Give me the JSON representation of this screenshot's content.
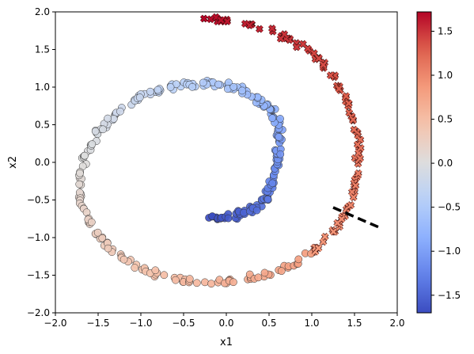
{
  "chart_data": {
    "type": "scatter",
    "title": "",
    "xlabel": "x1",
    "ylabel": "x2",
    "xlim": [
      -2.0,
      2.0
    ],
    "ylim": [
      -2.0,
      2.0
    ],
    "x_ticks": [
      "−2.0",
      "−1.5",
      "−1.0",
      "−0.5",
      "0.0",
      "0.5",
      "1.0",
      "1.5",
      "2.0"
    ],
    "y_ticks": [
      "−2.0",
      "−1.5",
      "−1.0",
      "−0.5",
      "0.0",
      "0.5",
      "1.0",
      "1.5",
      "2.0"
    ],
    "grid": false,
    "colormap": "coolwarm",
    "colorbar": {
      "range": [
        -1.7,
        1.72
      ],
      "ticks": [
        "−1.5",
        "−1.0",
        "−0.5",
        "0.0",
        "0.5",
        "1.0",
        "1.5"
      ],
      "tick_values": [
        -1.5,
        -1.0,
        -0.5,
        0.0,
        0.5,
        1.0,
        1.5
      ]
    },
    "spiral": {
      "description_markers": "circles for value below about 0.85, crosses above",
      "t_range": [
        -1.7,
        1.72
      ],
      "points": [
        [
          -0.2,
          -0.74,
          -1.7
        ],
        [
          -0.1,
          -0.75,
          -1.65
        ],
        [
          0.02,
          -0.74,
          -1.6
        ],
        [
          0.12,
          -0.7,
          -1.55
        ],
        [
          0.22,
          -0.66,
          -1.5
        ],
        [
          0.32,
          -0.62,
          -1.45
        ],
        [
          0.4,
          -0.56,
          -1.4
        ],
        [
          0.46,
          -0.48,
          -1.35
        ],
        [
          0.5,
          -0.38,
          -1.3
        ],
        [
          0.53,
          -0.28,
          -1.25
        ],
        [
          0.56,
          -0.16,
          -1.2
        ],
        [
          0.58,
          -0.04,
          -1.15
        ],
        [
          0.6,
          0.08,
          -1.1
        ],
        [
          0.62,
          0.2,
          -1.05
        ],
        [
          0.63,
          0.32,
          -1.0
        ],
        [
          0.62,
          0.44,
          -0.95
        ],
        [
          0.59,
          0.55,
          -0.9
        ],
        [
          0.55,
          0.65,
          -0.85
        ],
        [
          0.48,
          0.74,
          -0.8
        ],
        [
          0.4,
          0.82,
          -0.75
        ],
        [
          0.3,
          0.9,
          -0.7
        ],
        [
          0.18,
          0.96,
          -0.65
        ],
        [
          0.06,
          1.0,
          -0.6
        ],
        [
          -0.08,
          1.04,
          -0.55
        ],
        [
          -0.22,
          1.05,
          -0.5
        ],
        [
          -0.38,
          1.05,
          -0.45
        ],
        [
          -0.54,
          1.03,
          -0.4
        ],
        [
          -0.7,
          0.99,
          -0.35
        ],
        [
          -0.86,
          0.93,
          -0.3
        ],
        [
          -1.02,
          0.85,
          -0.25
        ],
        [
          -1.18,
          0.74,
          -0.2
        ],
        [
          -1.32,
          0.62,
          -0.15
        ],
        [
          -1.45,
          0.47,
          -0.1
        ],
        [
          -1.56,
          0.3,
          -0.05
        ],
        [
          -1.65,
          0.12,
          0.0
        ],
        [
          -1.7,
          -0.08,
          0.05
        ],
        [
          -1.73,
          -0.28,
          0.1
        ],
        [
          -1.71,
          -0.48,
          0.15
        ],
        [
          -1.66,
          -0.68,
          0.2
        ],
        [
          -1.57,
          -0.87,
          0.25
        ],
        [
          -1.45,
          -1.05,
          0.3
        ],
        [
          -1.3,
          -1.2,
          0.35
        ],
        [
          -1.12,
          -1.34,
          0.4
        ],
        [
          -0.92,
          -1.45,
          0.45
        ],
        [
          -0.7,
          -1.53,
          0.5
        ],
        [
          -0.46,
          -1.58,
          0.55
        ],
        [
          -0.2,
          -1.6,
          0.6
        ],
        [
          0.06,
          -1.58,
          0.65
        ],
        [
          0.32,
          -1.53,
          0.7
        ],
        [
          0.57,
          -1.45,
          0.75
        ],
        [
          0.8,
          -1.34,
          0.8
        ],
        [
          1.0,
          -1.19,
          0.85
        ],
        [
          1.18,
          -1.02,
          0.9
        ],
        [
          1.32,
          -0.82,
          0.95
        ],
        [
          1.43,
          -0.6,
          1.0
        ],
        [
          1.5,
          -0.36,
          1.05
        ],
        [
          1.53,
          -0.1,
          1.1
        ],
        [
          1.54,
          0.16,
          1.15
        ],
        [
          1.52,
          0.42,
          1.2
        ],
        [
          1.47,
          0.68,
          1.25
        ],
        [
          1.38,
          0.92,
          1.3
        ],
        [
          1.26,
          1.14,
          1.35
        ],
        [
          1.1,
          1.34,
          1.4
        ],
        [
          0.92,
          1.52,
          1.45
        ],
        [
          0.7,
          1.66,
          1.5
        ],
        [
          0.46,
          1.77,
          1.55
        ],
        [
          0.2,
          1.85,
          1.6
        ],
        [
          -0.06,
          1.9,
          1.66
        ],
        [
          -0.26,
          1.92,
          1.72
        ]
      ],
      "marker_threshold": 0.85
    },
    "annotation": {
      "type": "dashed line",
      "color": "#000000",
      "from": [
        1.25,
        -0.6
      ],
      "to": [
        1.8,
        -0.87
      ]
    }
  }
}
